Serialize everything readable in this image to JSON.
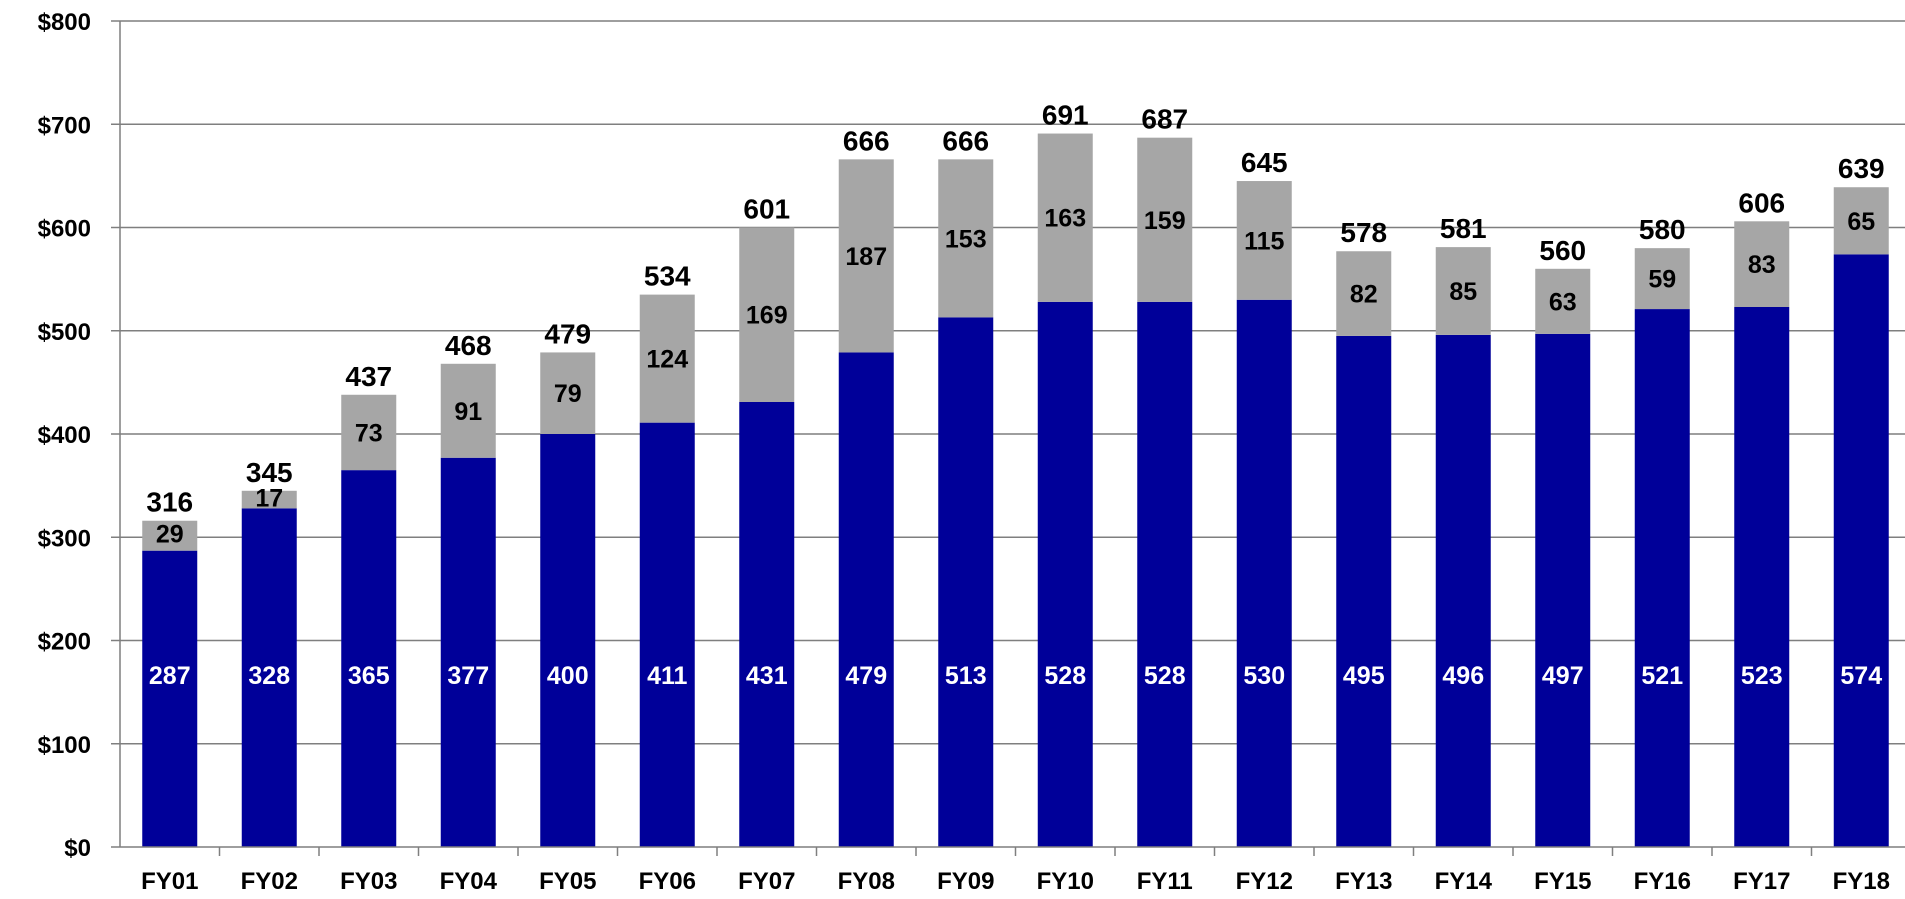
{
  "chart_data": {
    "type": "bar",
    "stacked": true,
    "categories": [
      "FY01",
      "FY02",
      "FY03",
      "FY04",
      "FY05",
      "FY06",
      "FY07",
      "FY08",
      "FY09",
      "FY10",
      "FY11",
      "FY12",
      "FY13",
      "FY14",
      "FY15",
      "FY16",
      "FY17",
      "FY18"
    ],
    "series": [
      {
        "values": [
          287,
          328,
          365,
          377,
          400,
          411,
          431,
          479,
          513,
          528,
          528,
          530,
          495,
          496,
          497,
          521,
          523,
          574
        ]
      },
      {
        "values": [
          29,
          17,
          73,
          91,
          79,
          124,
          169,
          187,
          153,
          163,
          159,
          115,
          82,
          85,
          63,
          59,
          83,
          65
        ]
      }
    ],
    "totals": [
      316,
      345,
      437,
      468,
      479,
      534,
      601,
      666,
      666,
      691,
      687,
      645,
      578,
      581,
      560,
      580,
      606,
      639
    ],
    "yticks": [
      "$0",
      "$100",
      "$200",
      "$300",
      "$400",
      "$500",
      "$600",
      "$700",
      "$800"
    ],
    "ylim": [
      0,
      800
    ],
    "grid": true,
    "colors": {
      "base": "#000099",
      "top": "#a6a6a6",
      "grid": "#7f7f7f"
    }
  }
}
